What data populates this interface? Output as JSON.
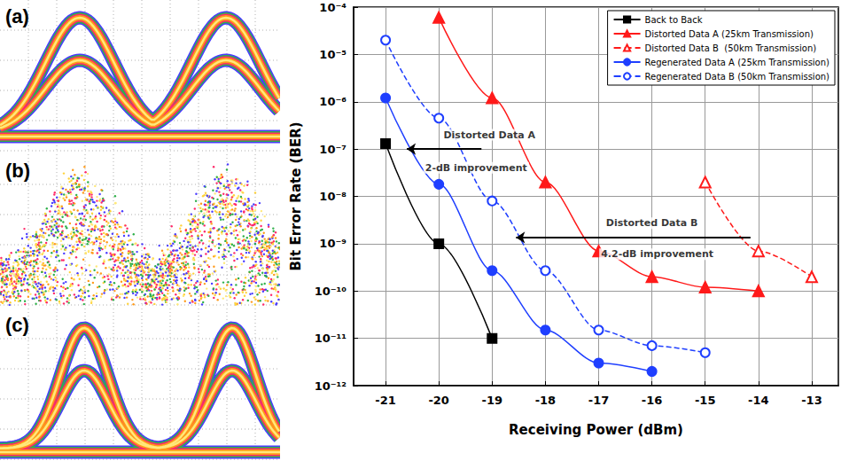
{
  "eye_diagrams": [
    "(a)",
    "(b)",
    "(c)"
  ],
  "chart_data": {
    "type": "line",
    "x_label": "Receiving Power (dBm)",
    "y_label": "Bit Error Rate (BER)",
    "log": "y",
    "grid": true,
    "legend": "upper right",
    "xlim": [
      -21.6,
      -12.5
    ],
    "xticks": [
      -21,
      -20,
      -19,
      -18,
      -17,
      -16,
      -15,
      -14,
      -13
    ],
    "ylim": [
      1e-12,
      0.0001
    ],
    "yticks": [
      {
        "value": 1e-12,
        "label": "10⁻¹²"
      },
      {
        "value": 1e-11,
        "label": "10⁻¹¹"
      },
      {
        "value": 1e-10,
        "label": "10⁻¹⁰"
      },
      {
        "value": 1e-09,
        "label": "10⁻⁹"
      },
      {
        "value": 1e-08,
        "label": "10⁻⁸"
      },
      {
        "value": 1e-07,
        "label": "10⁻⁷"
      },
      {
        "value": 1e-06,
        "label": "10⁻⁶"
      },
      {
        "value": 1e-05,
        "label": "10⁻⁵"
      },
      {
        "value": 0.0001,
        "label": "10⁻⁴"
      }
    ],
    "series": [
      {
        "name": "Back to Back",
        "color": "#000000",
        "marker": "square",
        "line_style": "solid",
        "x": [
          -21,
          -20,
          -19
        ],
        "values": [
          1.3e-07,
          1e-09,
          1e-11
        ]
      },
      {
        "name": "Distorted Data A (25km Transmission)",
        "color": "#ff1a1a",
        "marker": "triangle",
        "line_style": "solid",
        "x": [
          -20,
          -19,
          -18,
          -17,
          -16,
          -15,
          -14
        ],
        "values": [
          6e-05,
          1.2e-06,
          2e-08,
          7e-10,
          2e-10,
          1.2e-10,
          1e-10
        ]
      },
      {
        "name": "Distorted Data B  (50km Transmission)",
        "color": "#ff1a1a",
        "marker": "triangle-open",
        "line_style": "dashed",
        "x": [
          -15,
          -14,
          -13
        ],
        "values": [
          2e-08,
          7e-10,
          2e-10
        ]
      },
      {
        "name": "Regenerated Data A (25km Transmission)",
        "color": "#1f3fff",
        "marker": "circle",
        "line_style": "solid",
        "x": [
          -21,
          -20,
          -19,
          -18,
          -17,
          -16
        ],
        "values": [
          1.2e-06,
          1.8e-08,
          2.7e-10,
          1.5e-11,
          3e-12,
          2e-12
        ]
      },
      {
        "name": "Regenerated Data B (50km Transmission)",
        "color": "#1f3fff",
        "marker": "circle-open",
        "line_style": "dashed",
        "x": [
          -21,
          -20,
          -19,
          -18,
          -17,
          -16,
          -15
        ],
        "values": [
          2e-05,
          4.5e-07,
          8e-09,
          2.7e-10,
          1.5e-11,
          7e-12,
          5e-12
        ]
      }
    ],
    "annotations": [
      {
        "text": "Distorted Data A",
        "x": -19.05,
        "y": 2e-07
      },
      {
        "text": "2-dB improvement",
        "x": -19.3,
        "y": 4e-08
      },
      {
        "text": "Distorted Data B",
        "x": -16.0,
        "y": 2.7e-09
      },
      {
        "text": "4.2-dB improvement",
        "x": -15.9,
        "y": 6e-10
      }
    ],
    "arrows": [
      {
        "x_from": -19.2,
        "x_to": -20.6,
        "y": 1e-07
      },
      {
        "x_from": -14.15,
        "x_to": -18.55,
        "y": 1.35e-09
      }
    ]
  }
}
